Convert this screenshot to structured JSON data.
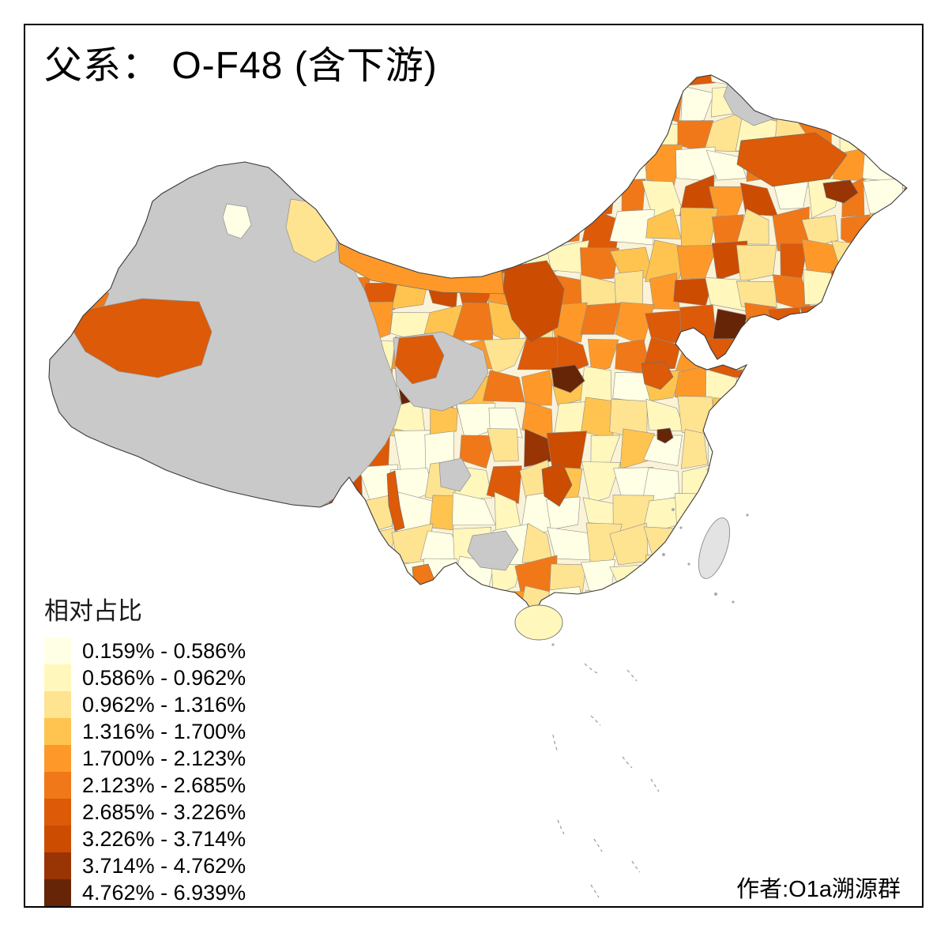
{
  "title": "父系： O-F48 (含下游)",
  "legend": {
    "title": "相对占比",
    "classes": [
      {
        "label": "0.159% - 0.586%",
        "color": "#FFFFE5"
      },
      {
        "label": "0.586% - 0.962%",
        "color": "#FFF7BC"
      },
      {
        "label": "0.962% - 1.316%",
        "color": "#FEE391"
      },
      {
        "label": "1.316% - 1.700%",
        "color": "#FEC44F"
      },
      {
        "label": "1.700% - 2.123%",
        "color": "#FE9929"
      },
      {
        "label": "2.123% - 2.685%",
        "color": "#F07818"
      },
      {
        "label": "2.685% - 3.226%",
        "color": "#DC5A08"
      },
      {
        "label": "3.226% - 3.714%",
        "color": "#CC4C02"
      },
      {
        "label": "3.714% - 4.762%",
        "color": "#993404"
      },
      {
        "label": "4.762% - 6.939%",
        "color": "#662506"
      }
    ]
  },
  "attribution": "作者:O1a溯源群",
  "map": {
    "type": "choropleth",
    "region": "China prefectures",
    "no_data_color": "#C9C9C9",
    "border_color": "#3a3a3a",
    "background": "#FFFFFF"
  }
}
